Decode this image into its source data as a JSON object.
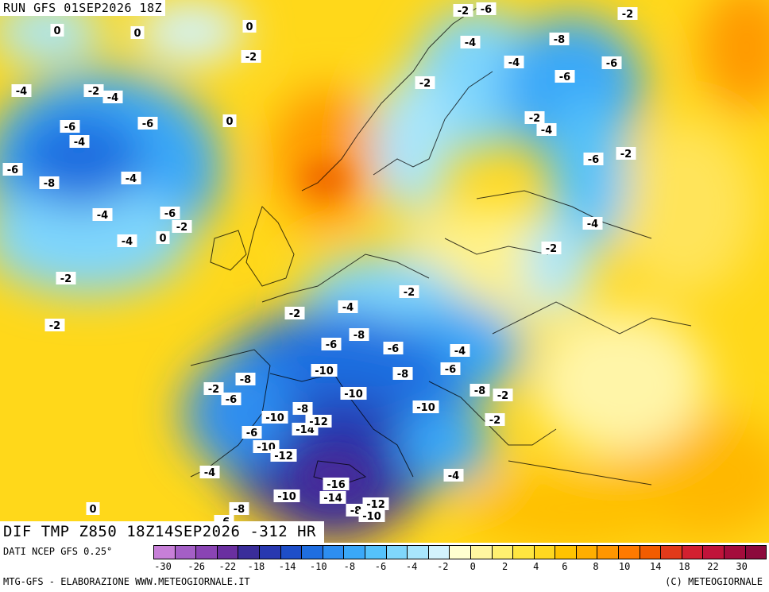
{
  "header": {
    "run_title": "RUN GFS 01SEP2026 18Z",
    "product_title": "DIF TMP Z850 18Z14SEP2026 -312 HR"
  },
  "footer": {
    "data_source": "DATI NCEP GFS 0.25°",
    "credit": "MTG-GFS - ELABORAZIONE WWW.METEOGIORNALE.IT",
    "copyright": "(C) METEOGIORNALE"
  },
  "legend": {
    "colors": [
      "#c77fd8",
      "#a45fc6",
      "#8a44b4",
      "#6a2fa0",
      "#3a2d9a",
      "#2838b0",
      "#1e4ec8",
      "#1f6ee0",
      "#2d8ef0",
      "#3aa8f8",
      "#55c2fb",
      "#7fd6fc",
      "#a8e6fd",
      "#d2f3fd",
      "#ffffd0",
      "#fff6a0",
      "#fff070",
      "#ffe640",
      "#ffd820",
      "#ffc300",
      "#ffae00",
      "#ff9600",
      "#ff7a00",
      "#f25c00",
      "#e23a1a",
      "#d22030",
      "#c0143a",
      "#a40c3c",
      "#8c0a3c"
    ],
    "ticks": [
      "-30",
      "-26",
      "-22",
      "-18",
      "-14",
      "-10",
      "-8",
      "-6",
      "-4",
      "-2",
      "0",
      "2",
      "4",
      "6",
      "8",
      "10",
      "14",
      "18",
      "22",
      "30"
    ]
  },
  "map_labels": [
    {
      "t": "-2"
    },
    {
      "t": "-6"
    },
    {
      "t": "-2"
    },
    {
      "t": "0"
    },
    {
      "t": "0"
    },
    {
      "t": "0"
    },
    {
      "t": "-2"
    },
    {
      "t": "-4"
    },
    {
      "t": "-8"
    },
    {
      "t": "-4"
    },
    {
      "t": "-6"
    },
    {
      "t": "-6"
    },
    {
      "t": "-4"
    },
    {
      "t": "-2"
    },
    {
      "t": "-4"
    },
    {
      "t": "-2"
    },
    {
      "t": "0"
    },
    {
      "t": "-6"
    },
    {
      "t": "-6"
    },
    {
      "t": "-2"
    },
    {
      "t": "-4"
    },
    {
      "t": "-4"
    },
    {
      "t": "-6"
    },
    {
      "t": "-8"
    },
    {
      "t": "-6"
    },
    {
      "t": "-2"
    },
    {
      "t": "-4"
    },
    {
      "t": "-4"
    },
    {
      "t": "-6"
    },
    {
      "t": "-2"
    },
    {
      "t": "-4"
    },
    {
      "t": "0"
    },
    {
      "t": "-2"
    },
    {
      "t": "-2"
    },
    {
      "t": "-2"
    },
    {
      "t": "-4"
    },
    {
      "t": "-2"
    },
    {
      "t": "-2"
    },
    {
      "t": "-8"
    },
    {
      "t": "-6"
    },
    {
      "t": "-6"
    },
    {
      "t": "-4"
    },
    {
      "t": "-10"
    },
    {
      "t": "-8"
    },
    {
      "t": "-6"
    },
    {
      "t": "-4"
    },
    {
      "t": "-8"
    },
    {
      "t": "-2"
    },
    {
      "t": "-6"
    },
    {
      "t": "-10"
    },
    {
      "t": "-10"
    },
    {
      "t": "-8"
    },
    {
      "t": "-2"
    },
    {
      "t": "-2"
    },
    {
      "t": "-10"
    },
    {
      "t": "-12"
    },
    {
      "t": "-14"
    },
    {
      "t": "-6"
    },
    {
      "t": "-10"
    },
    {
      "t": "-12"
    },
    {
      "t": "-8"
    },
    {
      "t": "-4"
    },
    {
      "t": "-4"
    },
    {
      "t": "-16"
    },
    {
      "t": "-10"
    },
    {
      "t": "-14"
    },
    {
      "t": "-8"
    },
    {
      "t": "-12"
    },
    {
      "t": "-10"
    },
    {
      "t": "-8"
    },
    {
      "t": "0"
    },
    {
      "t": "-6"
    }
  ]
}
